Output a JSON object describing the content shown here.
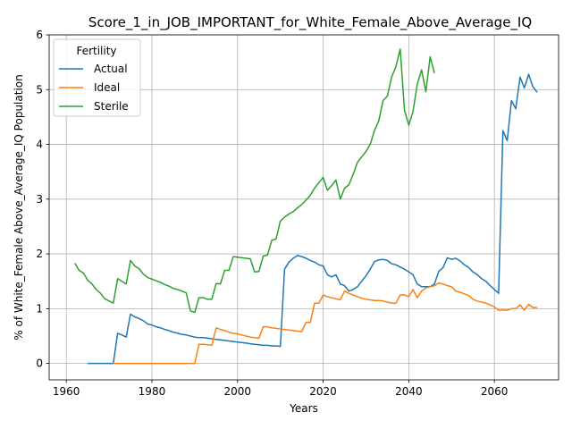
{
  "chart_data": {
    "type": "line",
    "title": "Score_1_in_JOB_IMPORTANT_for_White_Female_Above_Average_IQ",
    "xlabel": "Years",
    "ylabel": "% of White_Female Above_Average_IQ Population",
    "xlim": [
      1956,
      2075
    ],
    "ylim": [
      -0.3,
      6.0
    ],
    "xticks": [
      1960,
      1980,
      2000,
      2020,
      2040,
      2060
    ],
    "yticks": [
      0,
      1,
      2,
      3,
      4,
      5,
      6
    ],
    "grid": true,
    "legend": {
      "title": "Fertility",
      "placement": "top-left"
    },
    "series": [
      {
        "name": "Actual",
        "color": "#1f77b4",
        "x": [
          1965,
          1966,
          1967,
          1968,
          1969,
          1970,
          1971,
          1972,
          1973,
          1974,
          1975,
          1976,
          1977,
          1978,
          1979,
          1980,
          1981,
          1982,
          1983,
          1984,
          1985,
          1986,
          1987,
          1988,
          1989,
          1990,
          1991,
          1992,
          1993,
          1994,
          1995,
          1996,
          1997,
          1998,
          1999,
          2000,
          2001,
          2002,
          2003,
          2004,
          2005,
          2006,
          2007,
          2008,
          2009,
          2010,
          2011,
          2012,
          2013,
          2014,
          2015,
          2016,
          2017,
          2018,
          2019,
          2020,
          2021,
          2022,
          2023,
          2024,
          2025,
          2026,
          2027,
          2028,
          2029,
          2030,
          2031,
          2032,
          2033,
          2034,
          2035,
          2036,
          2037,
          2038,
          2039,
          2040,
          2041,
          2042,
          2043,
          2044,
          2045,
          2046,
          2047,
          2048,
          2049,
          2050,
          2051,
          2052,
          2053,
          2054,
          2055,
          2056,
          2057,
          2058,
          2059,
          2060,
          2061,
          2062,
          2063,
          2064,
          2065,
          2066,
          2067,
          2068,
          2069,
          2070
        ],
        "y": [
          0,
          0,
          0,
          0,
          0,
          0,
          0,
          0.55,
          0.52,
          0.48,
          0.9,
          0.85,
          0.82,
          0.78,
          0.72,
          0.7,
          0.67,
          0.65,
          0.62,
          0.6,
          0.57,
          0.55,
          0.53,
          0.52,
          0.5,
          0.48,
          0.47,
          0.47,
          0.46,
          0.45,
          0.44,
          0.43,
          0.42,
          0.41,
          0.4,
          0.39,
          0.38,
          0.37,
          0.36,
          0.35,
          0.34,
          0.33,
          0.33,
          0.32,
          0.32,
          0.31,
          1.72,
          1.85,
          1.92,
          1.97,
          1.95,
          1.92,
          1.88,
          1.85,
          1.8,
          1.78,
          1.62,
          1.58,
          1.62,
          1.45,
          1.42,
          1.32,
          1.35,
          1.4,
          1.5,
          1.6,
          1.72,
          1.86,
          1.89,
          1.9,
          1.88,
          1.82,
          1.8,
          1.76,
          1.72,
          1.67,
          1.62,
          1.45,
          1.4,
          1.4,
          1.4,
          1.45,
          1.68,
          1.75,
          1.93,
          1.9,
          1.92,
          1.87,
          1.8,
          1.75,
          1.67,
          1.62,
          1.55,
          1.5,
          1.42,
          1.35,
          1.28,
          4.25,
          4.07,
          4.8,
          4.65,
          5.23,
          5.03,
          5.28,
          5.05,
          4.95
        ]
      },
      {
        "name": "Ideal",
        "color": "#ff7f0e",
        "x": [
          1971,
          1972,
          1975,
          1980,
          1985,
          1989,
          1990,
          1991,
          1992,
          1993,
          1994,
          1995,
          1996,
          1997,
          1998,
          1999,
          2000,
          2001,
          2002,
          2003,
          2004,
          2005,
          2006,
          2007,
          2008,
          2009,
          2010,
          2011,
          2012,
          2013,
          2014,
          2015,
          2016,
          2017,
          2018,
          2019,
          2020,
          2021,
          2022,
          2023,
          2024,
          2025,
          2026,
          2027,
          2028,
          2029,
          2030,
          2031,
          2032,
          2033,
          2034,
          2035,
          2036,
          2037,
          2038,
          2039,
          2040,
          2041,
          2042,
          2043,
          2044,
          2045,
          2046,
          2047,
          2048,
          2049,
          2050,
          2051,
          2052,
          2053,
          2054,
          2055,
          2056,
          2057,
          2058,
          2059,
          2060,
          2061,
          2062,
          2063,
          2064,
          2065,
          2066,
          2067,
          2068,
          2069,
          2070
        ],
        "y": [
          0,
          0,
          0,
          0,
          0,
          0,
          0,
          0.35,
          0.35,
          0.34,
          0.33,
          0.65,
          0.62,
          0.6,
          0.57,
          0.55,
          0.54,
          0.52,
          0.5,
          0.48,
          0.47,
          0.46,
          0.67,
          0.67,
          0.65,
          0.64,
          0.63,
          0.62,
          0.61,
          0.6,
          0.59,
          0.58,
          0.75,
          0.75,
          1.1,
          1.1,
          1.25,
          1.22,
          1.2,
          1.18,
          1.16,
          1.32,
          1.28,
          1.25,
          1.22,
          1.19,
          1.17,
          1.16,
          1.15,
          1.15,
          1.14,
          1.12,
          1.1,
          1.1,
          1.25,
          1.25,
          1.22,
          1.35,
          1.2,
          1.32,
          1.38,
          1.4,
          1.42,
          1.47,
          1.45,
          1.42,
          1.4,
          1.32,
          1.3,
          1.27,
          1.24,
          1.17,
          1.14,
          1.12,
          1.1,
          1.07,
          1.03,
          0.97,
          0.98,
          0.97,
          1.0,
          1.0,
          1.07,
          0.97,
          1.08,
          1.02,
          1.02
        ]
      },
      {
        "name": "Sterile",
        "color": "#2ca02c",
        "x": [
          1962,
          1963,
          1964,
          1965,
          1966,
          1967,
          1968,
          1969,
          1970,
          1971,
          1972,
          1973,
          1974,
          1975,
          1976,
          1977,
          1978,
          1979,
          1980,
          1981,
          1982,
          1983,
          1984,
          1985,
          1986,
          1987,
          1988,
          1989,
          1990,
          1991,
          1992,
          1993,
          1994,
          1995,
          1996,
          1997,
          1998,
          1999,
          2000,
          2001,
          2002,
          2003,
          2004,
          2005,
          2006,
          2007,
          2008,
          2009,
          2010,
          2011,
          2012,
          2013,
          2014,
          2015,
          2016,
          2017,
          2018,
          2019,
          2020,
          2021,
          2022,
          2023,
          2024,
          2025,
          2026,
          2027,
          2028,
          2029,
          2030,
          2031,
          2032,
          2033,
          2034,
          2035,
          2036,
          2037,
          2038,
          2039,
          2040,
          2041,
          2042,
          2043,
          2044,
          2045,
          2046
        ],
        "y": [
          1.83,
          1.7,
          1.65,
          1.52,
          1.45,
          1.35,
          1.28,
          1.18,
          1.14,
          1.1,
          1.55,
          1.5,
          1.45,
          1.88,
          1.78,
          1.73,
          1.63,
          1.57,
          1.54,
          1.51,
          1.48,
          1.44,
          1.41,
          1.37,
          1.35,
          1.32,
          1.29,
          0.96,
          0.93,
          1.2,
          1.2,
          1.17,
          1.17,
          1.46,
          1.45,
          1.7,
          1.7,
          1.95,
          1.94,
          1.93,
          1.92,
          1.91,
          1.67,
          1.68,
          1.96,
          1.98,
          2.25,
          2.27,
          2.6,
          2.67,
          2.73,
          2.77,
          2.84,
          2.9,
          2.98,
          3.07,
          3.2,
          3.3,
          3.4,
          3.16,
          3.25,
          3.35,
          3.0,
          3.2,
          3.26,
          3.45,
          3.67,
          3.77,
          3.87,
          4.0,
          4.25,
          4.43,
          4.8,
          4.88,
          5.23,
          5.42,
          5.74,
          4.62,
          4.35,
          4.6,
          5.1,
          5.36,
          4.96,
          5.6,
          5.3
        ]
      }
    ]
  }
}
